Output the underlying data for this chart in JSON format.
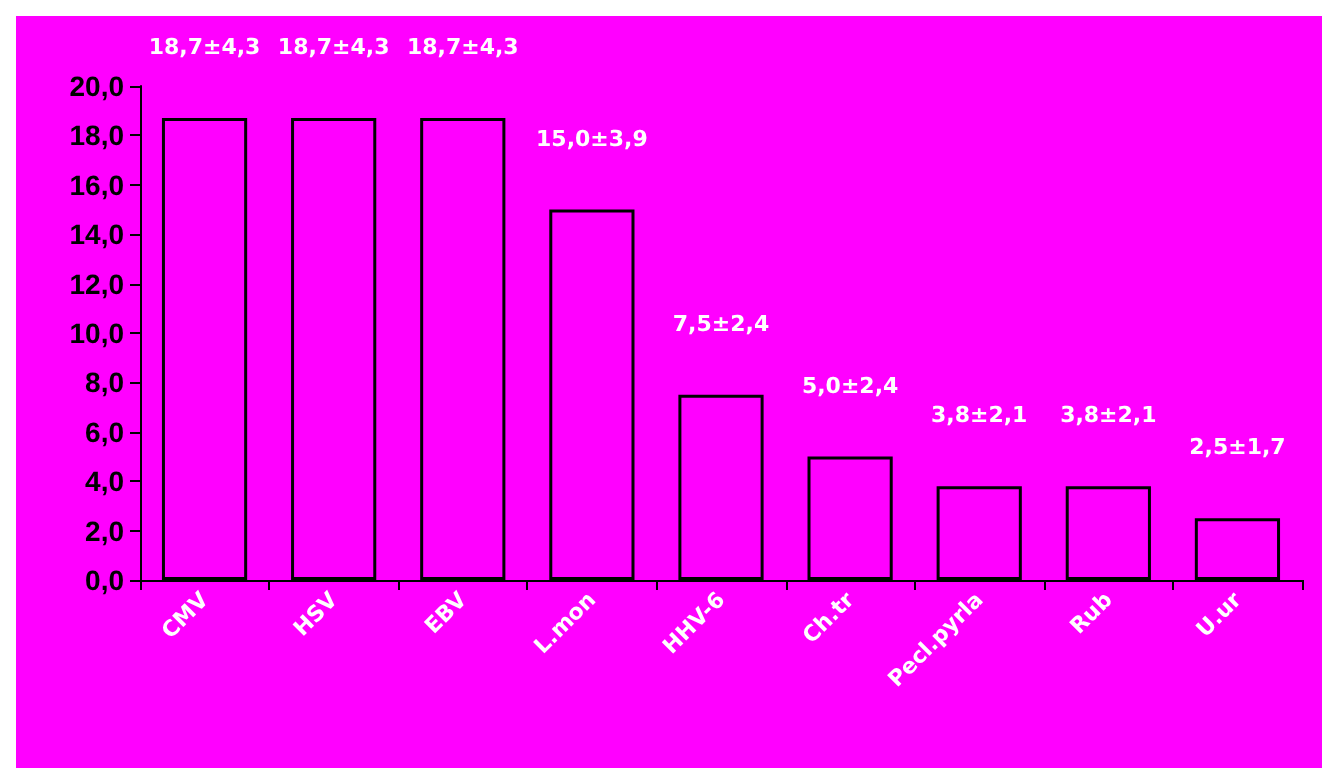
{
  "chart_data": {
    "type": "bar",
    "categories": [
      "CMV",
      "HSV",
      "EBV",
      "L.mon",
      "HHV-6",
      "Ch.tr",
      "Pecl.pyrla",
      "Rub",
      "U.ur"
    ],
    "values": [
      18.7,
      18.7,
      18.7,
      15.0,
      7.5,
      5.0,
      3.8,
      3.8,
      2.5
    ],
    "value_labels": [
      "18,7±4,3",
      "18,7±4,3",
      "18,7±4,3",
      "15,0±3,9",
      "7,5±2,4",
      "5,0±2,4",
      "3,8±2,1",
      "3,8±2,1",
      "2,5±1,7"
    ],
    "color": "#ff00ff",
    "ylim": [
      0,
      20
    ],
    "yticks": [
      {
        "value": 0,
        "label": "0,0"
      },
      {
        "value": 2,
        "label": "2,0"
      },
      {
        "value": 4,
        "label": "4,0"
      },
      {
        "value": 6,
        "label": "6,0"
      },
      {
        "value": 8,
        "label": "8,0"
      },
      {
        "value": 10,
        "label": "10,0"
      },
      {
        "value": 12,
        "label": "12,0"
      },
      {
        "value": 14,
        "label": "14,0"
      },
      {
        "value": 16,
        "label": "16,0"
      },
      {
        "value": 18,
        "label": "18,0"
      },
      {
        "value": 20,
        "label": "20,0"
      }
    ],
    "grid": false
  }
}
